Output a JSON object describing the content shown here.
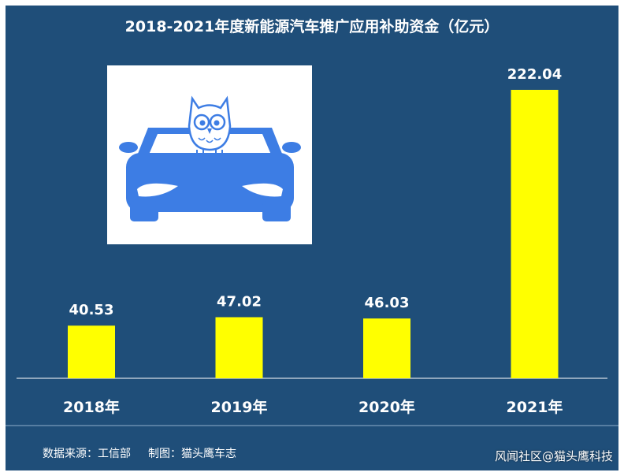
{
  "chart_data": {
    "type": "bar",
    "title": "2018-2021年度新能源汽车推广应用补助资金（亿元）",
    "categories": [
      "2018年",
      "2019年",
      "2020年",
      "2021年"
    ],
    "values": [
      40.53,
      47.02,
      46.03,
      222.04
    ],
    "value_labels": [
      "40.53",
      "47.02",
      "46.03",
      "222.04"
    ],
    "ylim": [
      0,
      222.04
    ],
    "bar_color": "#ffff00",
    "background_color": "#1f4e79",
    "text_color": "#ffffff",
    "grid": false,
    "legend": "none"
  },
  "footer": {
    "source": "数据来源：工信部",
    "maker": "制图：猫头鹰车志"
  },
  "watermark": "风闻社区@猫头鹰科技",
  "logo": {
    "icon": "owl-on-car-logo",
    "car_color": "#3d7de4",
    "background": "#ffffff"
  }
}
